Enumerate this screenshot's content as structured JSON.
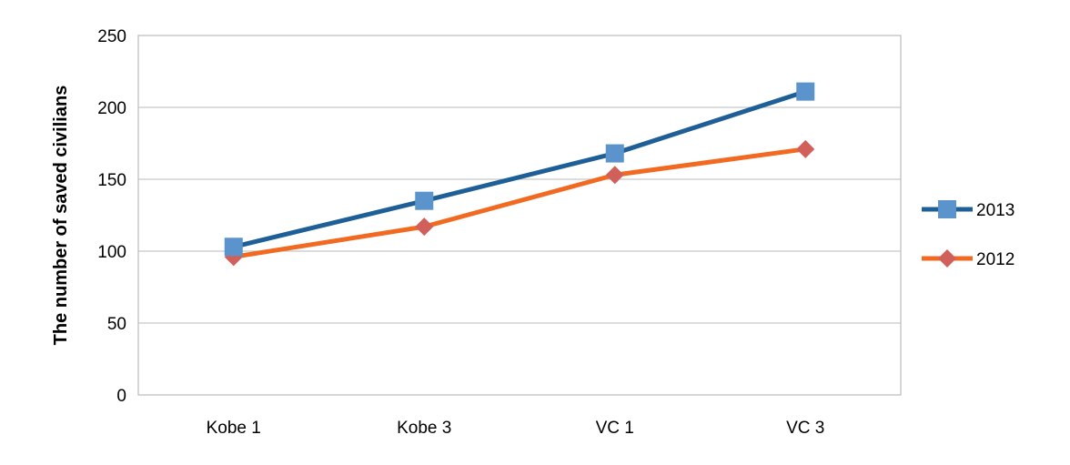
{
  "chart_data": {
    "type": "line",
    "title": "",
    "xlabel": "",
    "ylabel": "The number of saved civilians",
    "categories": [
      "Kobe 1",
      "Kobe 3",
      "VC 1",
      "VC 3"
    ],
    "ylim": [
      0,
      250
    ],
    "yticks": [
      0,
      50,
      100,
      150,
      200,
      250
    ],
    "grid": true,
    "legend_position": "right",
    "series": [
      {
        "name": "2013",
        "values": [
          103,
          135,
          168,
          211
        ],
        "line_color": "#1f5f97",
        "marker": "square",
        "marker_color": "#5b93cc"
      },
      {
        "name": "2012",
        "values": [
          96,
          117,
          153,
          171
        ],
        "line_color": "#f26a22",
        "marker": "diamond",
        "marker_color": "#d2605a"
      }
    ]
  }
}
